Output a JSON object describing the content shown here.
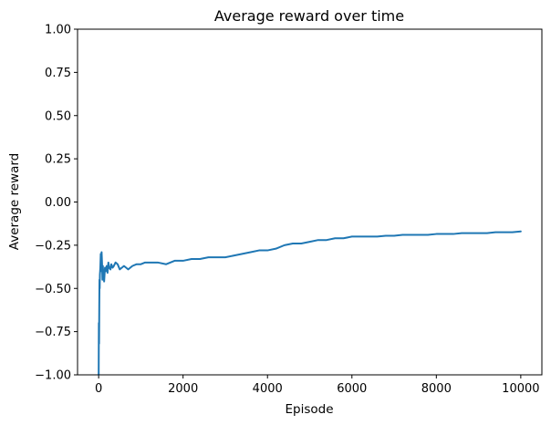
{
  "chart_data": {
    "type": "line",
    "title": "Average reward over time",
    "xlabel": "Episode",
    "ylabel": "Average reward",
    "xlim": [
      -500,
      10500
    ],
    "ylim": [
      -1.0,
      1.0
    ],
    "x_ticks": [
      0,
      2000,
      4000,
      6000,
      8000,
      10000
    ],
    "y_ticks": [
      -1.0,
      -0.75,
      -0.5,
      -0.25,
      0.0,
      0.25,
      0.5,
      0.75,
      1.0
    ],
    "x_tick_labels": [
      "0",
      "2000",
      "4000",
      "6000",
      "8000",
      "10000"
    ],
    "y_tick_labels": [
      "−1.00",
      "−0.75",
      "−0.50",
      "−0.25",
      "0.00",
      "0.25",
      "0.50",
      "0.75",
      "1.00"
    ],
    "grid": false,
    "series": [
      {
        "color": "#1f77b4",
        "x": [
          1,
          5,
          10,
          15,
          20,
          25,
          30,
          40,
          50,
          60,
          70,
          80,
          90,
          100,
          110,
          120,
          130,
          150,
          170,
          190,
          210,
          230,
          250,
          280,
          300,
          330,
          360,
          400,
          450,
          500,
          550,
          600,
          700,
          800,
          900,
          1000,
          1100,
          1200,
          1400,
          1600,
          1800,
          2000,
          2200,
          2400,
          2600,
          2800,
          3000,
          3200,
          3400,
          3600,
          3800,
          4000,
          4200,
          4400,
          4600,
          4800,
          5000,
          5200,
          5400,
          5600,
          5800,
          6000,
          6200,
          6400,
          6600,
          6800,
          7000,
          7200,
          7400,
          7600,
          7800,
          8000,
          8200,
          8400,
          8600,
          8800,
          9000,
          9200,
          9400,
          9600,
          9800,
          10000
        ],
        "y": [
          -1.0,
          -0.7,
          -0.82,
          -0.6,
          -0.45,
          -0.5,
          -0.42,
          -0.38,
          -0.3,
          -0.4,
          -0.29,
          -0.35,
          -0.45,
          -0.37,
          -0.42,
          -0.4,
          -0.46,
          -0.38,
          -0.4,
          -0.37,
          -0.41,
          -0.35,
          -0.38,
          -0.39,
          -0.36,
          -0.38,
          -0.37,
          -0.35,
          -0.36,
          -0.39,
          -0.38,
          -0.37,
          -0.39,
          -0.37,
          -0.36,
          -0.36,
          -0.35,
          -0.35,
          -0.35,
          -0.36,
          -0.34,
          -0.34,
          -0.33,
          -0.33,
          -0.32,
          -0.32,
          -0.32,
          -0.31,
          -0.3,
          -0.29,
          -0.28,
          -0.28,
          -0.27,
          -0.25,
          -0.24,
          -0.24,
          -0.23,
          -0.22,
          -0.22,
          -0.21,
          -0.21,
          -0.2,
          -0.2,
          -0.2,
          -0.2,
          -0.195,
          -0.195,
          -0.19,
          -0.19,
          -0.19,
          -0.19,
          -0.185,
          -0.185,
          -0.185,
          -0.18,
          -0.18,
          -0.18,
          -0.18,
          -0.175,
          -0.175,
          -0.175,
          -0.17
        ]
      }
    ]
  }
}
